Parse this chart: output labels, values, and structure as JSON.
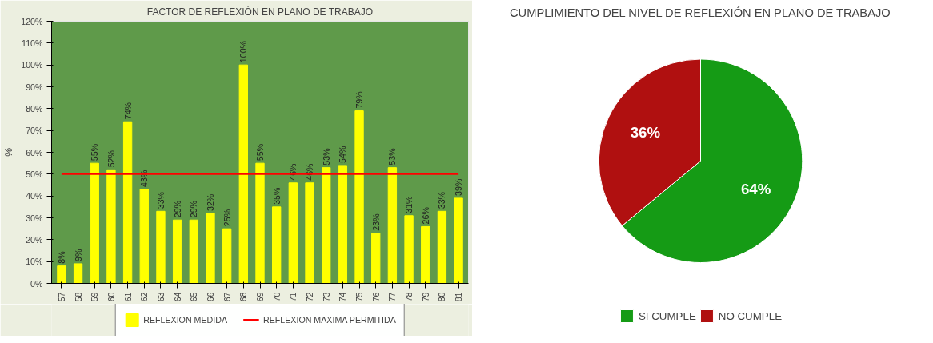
{
  "chart_data": [
    {
      "type": "bar",
      "title": "FACTOR DE REFLEXIÓN EN PLANO DE TRABAJO",
      "ylabel": "%",
      "categories": [
        "57",
        "58",
        "59",
        "60",
        "61",
        "62",
        "63",
        "64",
        "65",
        "66",
        "67",
        "68",
        "69",
        "70",
        "71",
        "72",
        "73",
        "74",
        "75",
        "76",
        "77",
        "78",
        "79",
        "80",
        "81"
      ],
      "series": [
        {
          "name": "REFLEXION MEDIDA",
          "type": "bar",
          "color": "#ffff00",
          "values": [
            8,
            9,
            55,
            52,
            74,
            43,
            33,
            29,
            29,
            32,
            25,
            100,
            55,
            35,
            46,
            46,
            53,
            54,
            79,
            23,
            53,
            31,
            26,
            33,
            39
          ],
          "value_labels": [
            "8%",
            "9%",
            "55%",
            "52%",
            "74%",
            "43%",
            "33%",
            "29%",
            "29%",
            "32%",
            "25%",
            "100%",
            "55%",
            "35%",
            "46%",
            "46%",
            "53%",
            "54%",
            "79%",
            "23%",
            "53%",
            "31%",
            "26%",
            "33%",
            "39%"
          ]
        },
        {
          "name": "REFLEXION MAXIMA PERMITIDA",
          "type": "line",
          "color": "#ff0000",
          "values": [
            50,
            50,
            50,
            50,
            50,
            50,
            50,
            50,
            50,
            50,
            50,
            50,
            50,
            50,
            50,
            50,
            50,
            50,
            50,
            50,
            50,
            50,
            50,
            50,
            50
          ]
        }
      ],
      "ylim": [
        0,
        120
      ],
      "yticks": [
        {
          "value": 0,
          "label": "0%"
        },
        {
          "value": 10,
          "label": "10%"
        },
        {
          "value": 20,
          "label": "20%"
        },
        {
          "value": 30,
          "label": "30%"
        },
        {
          "value": 40,
          "label": "40%"
        },
        {
          "value": 50,
          "label": "50%"
        },
        {
          "value": 60,
          "label": "60%"
        },
        {
          "value": 70,
          "label": "70%"
        },
        {
          "value": 80,
          "label": "80%"
        },
        {
          "value": 90,
          "label": "90%"
        },
        {
          "value": 100,
          "label": "100%"
        },
        {
          "value": 110,
          "label": "110%"
        },
        {
          "value": 120,
          "label": "120%"
        }
      ],
      "legend": "bottom",
      "grid": false
    },
    {
      "type": "pie",
      "title": "CUMPLIMIENTO DEL NIVEL DE REFLEXIÓN EN PLANO DE TRABAJO",
      "categories": [
        "SI CUMPLE",
        "NO CUMPLE"
      ],
      "values": [
        64,
        36
      ],
      "colors": [
        "#159b15",
        "#b01010"
      ],
      "value_labels": [
        "64%",
        "36%"
      ],
      "legend": "bottom"
    }
  ]
}
